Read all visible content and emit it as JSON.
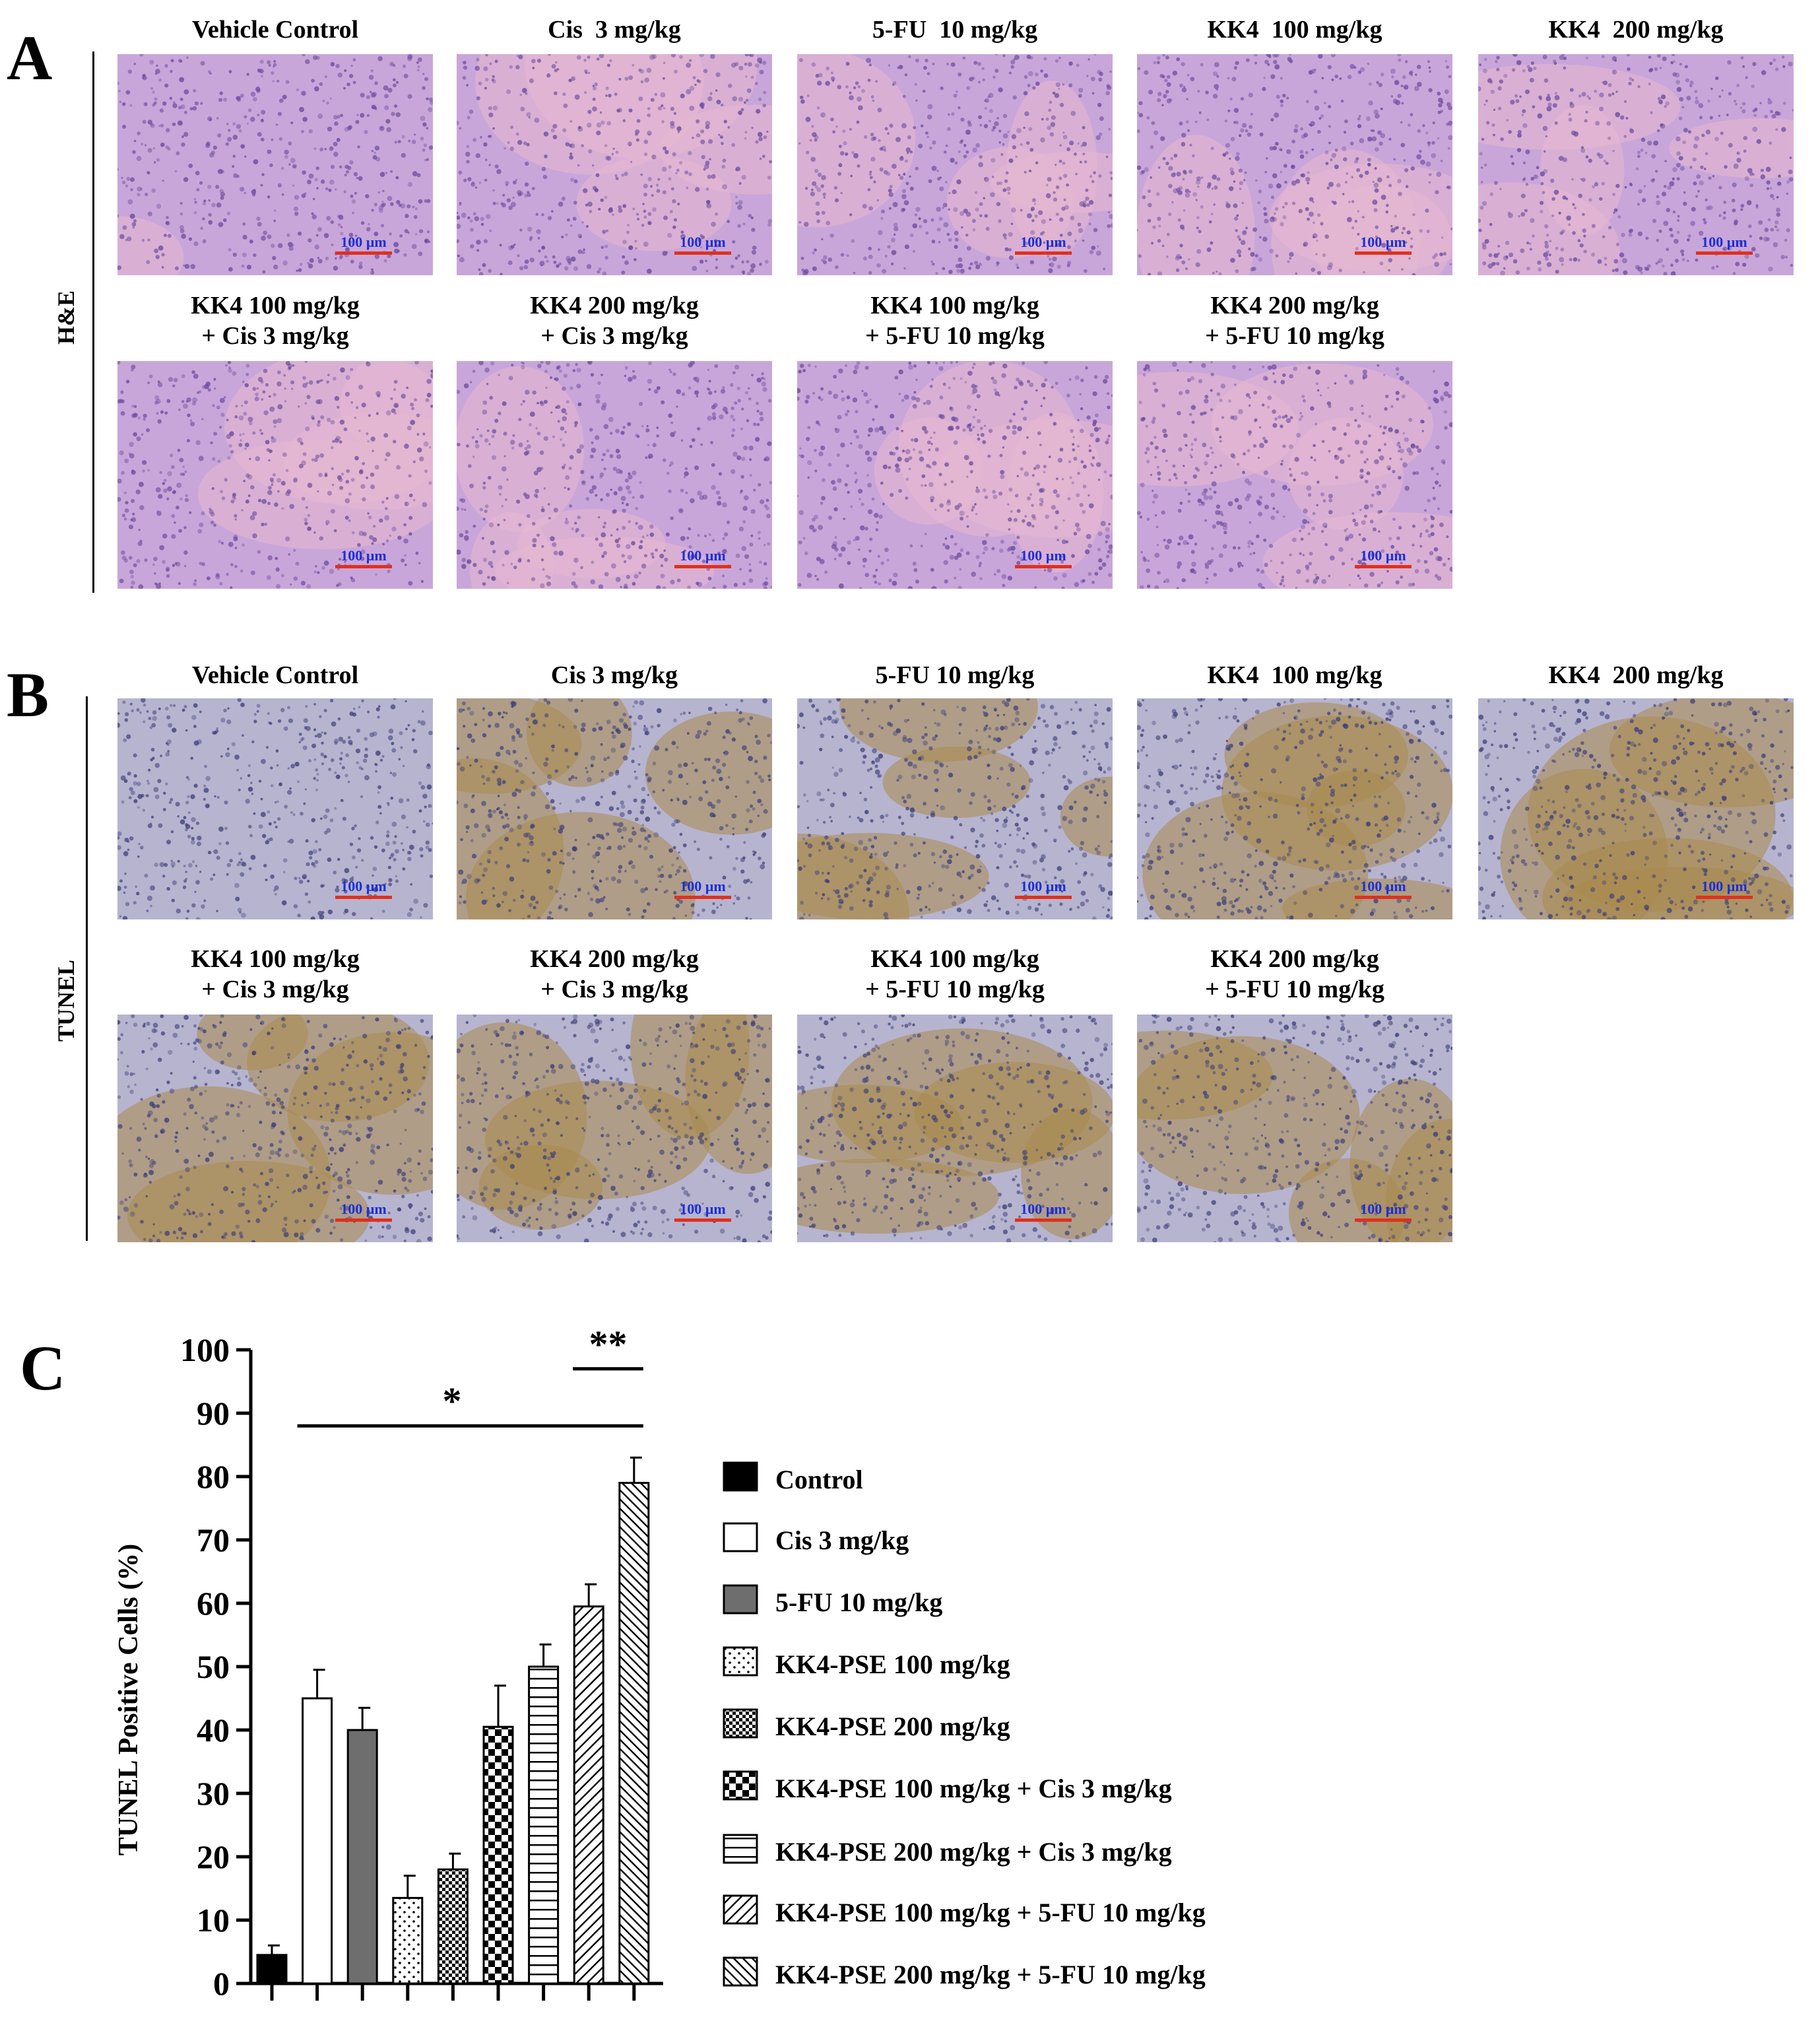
{
  "panels": {
    "a": {
      "letter": "A",
      "side_label": "H&E",
      "row1": [
        "Vehicle Control",
        "Cis  3 mg/kg",
        "5-FU  10 mg/kg",
        "KK4  100 mg/kg",
        "KK4  200 mg/kg"
      ],
      "row2": [
        {
          "line1": "KK4 100 mg/kg",
          "line2": "+ Cis 3 mg/kg"
        },
        {
          "line1": "KK4 200 mg/kg",
          "line2": "+ Cis 3 mg/kg"
        },
        {
          "line1": "KK4 100 mg/kg",
          "line2": "+ 5-FU 10 mg/kg"
        },
        {
          "line1": "KK4 200 mg/kg",
          "line2": "+ 5-FU 10 mg/kg"
        }
      ]
    },
    "b": {
      "letter": "B",
      "side_label": "TUNEL",
      "row1": [
        "Vehicle Control",
        "Cis 3 mg/kg",
        "5-FU 10 mg/kg",
        "KK4  100 mg/kg",
        "KK4  200 mg/kg"
      ],
      "row2": [
        {
          "line1": "KK4 100 mg/kg",
          "line2": "+ Cis 3 mg/kg"
        },
        {
          "line1": "KK4 200 mg/kg",
          "line2": "+ Cis 3 mg/kg"
        },
        {
          "line1": "KK4 100 mg/kg",
          "line2": "+ 5-FU 10 mg/kg"
        },
        {
          "line1": "KK4 200 mg/kg",
          "line2": "+ 5-FU 10 mg/kg"
        }
      ]
    },
    "c": {
      "letter": "C"
    }
  },
  "scale_bar_text": "100 µm",
  "colors": {
    "he_base": "#c9a6d9",
    "he_dark": "#6a4a9e",
    "he_pink": "#e6b8cf",
    "tunel_base": "#b7b4cf",
    "tunel_dark": "#3c3f7a",
    "tunel_brown": "#a98a4e",
    "scalebar_text": "#1a2fd8",
    "scalebar_line": "#e0301e"
  },
  "chart_data": {
    "type": "bar",
    "ylabel": "TUNEL Positive Cells (%)",
    "ylim": [
      0,
      100
    ],
    "yticks": [
      0,
      10,
      20,
      30,
      40,
      50,
      60,
      70,
      80,
      90,
      100
    ],
    "categories": [
      "Control",
      "Cis 3 mg/kg",
      "5-FU 10 mg/kg",
      "KK4-PSE 100 mg/kg",
      "KK4-PSE 200 mg/kg",
      "KK4-PSE 100 mg/kg + Cis 3 mg/kg",
      "KK4-PSE 200 mg/kg + Cis 3 mg/kg",
      "KK4-PSE 100 mg/kg + 5-FU 10 mg/kg",
      "KK4-PSE 200 mg/kg + 5-FU 10 mg/kg"
    ],
    "values": [
      4.5,
      45,
      40,
      13.5,
      18,
      40.5,
      50,
      59.5,
      79
    ],
    "errors": [
      1.5,
      4.5,
      3.5,
      3.5,
      2.5,
      6.5,
      3.5,
      3.5,
      4
    ],
    "fills": [
      "solid-black",
      "white",
      "solid-gray",
      "dots",
      "fine-check",
      "check",
      "h-lines",
      "diag-up",
      "diag-down"
    ],
    "legend_position": "right",
    "significance": [
      {
        "label": "*",
        "from": 1,
        "to": 8,
        "y": 88
      },
      {
        "label": "**",
        "from": 7,
        "to": 8,
        "y": 97
      }
    ]
  }
}
